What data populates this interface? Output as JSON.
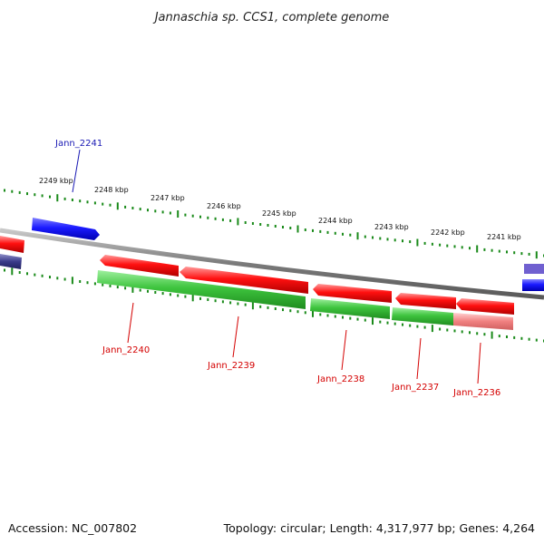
{
  "title": "Jannaschia sp. CCS1, complete genome",
  "footer": {
    "accession": "Accession: NC_007802",
    "topology": "Topology: circular; Length: 4,317,977 bp; Genes: 4,264"
  },
  "colors": {
    "forward_strand": "#1a1aff",
    "reverse_strand": "#ff1010",
    "cds_track": "#3ec43e",
    "backbone": "#888888",
    "tick": "#1a8a1a",
    "forward_label": "#1a1ab4",
    "reverse_label": "#d40000",
    "gene_highlight": "#f08080"
  },
  "scale": {
    "unit": "kbp",
    "labels": [
      "2249 kbp",
      "2248 kbp",
      "2247 kbp",
      "2246 kbp",
      "2245 kbp",
      "2244 kbp",
      "2243 kbp",
      "2242 kbp",
      "2241 kbp"
    ]
  },
  "genes": [
    {
      "label": "Jann_2241",
      "strand": "forward"
    },
    {
      "label": "Jann_2240",
      "strand": "reverse"
    },
    {
      "label": "Jann_2239",
      "strand": "reverse"
    },
    {
      "label": "Jann_2238",
      "strand": "reverse"
    },
    {
      "label": "Jann_2237",
      "strand": "reverse"
    },
    {
      "label": "Jann_2236",
      "strand": "reverse"
    }
  ]
}
